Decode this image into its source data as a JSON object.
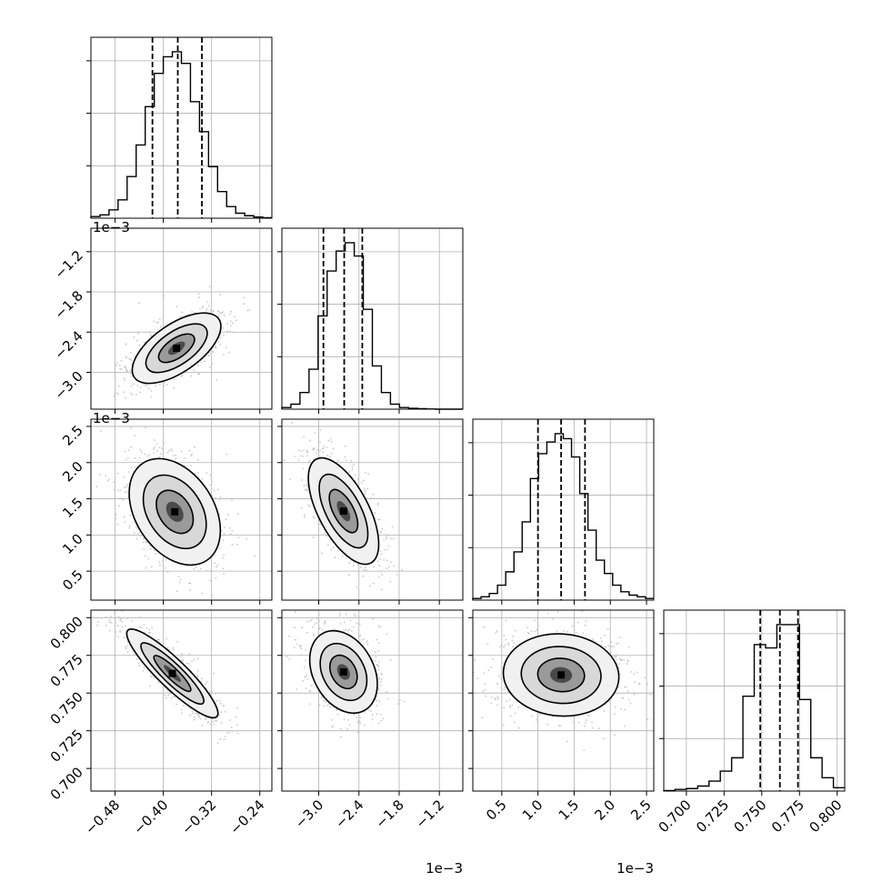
{
  "chart_data": {
    "type": "corner",
    "title": "",
    "grid": true,
    "parameters": [
      {
        "range": [
          -0.52,
          -0.22
        ],
        "ticks": [
          -0.48,
          -0.4,
          -0.32,
          -0.24
        ],
        "tick_labels": [
          "−0.48",
          "−0.40",
          "−0.32",
          "−0.24"
        ],
        "quantiles": [
          -0.418,
          -0.376,
          -0.336
        ],
        "hist": [
          0.01,
          0.02,
          0.05,
          0.11,
          0.25,
          0.44,
          0.67,
          0.87,
          0.97,
          1.0,
          0.93,
          0.7,
          0.52,
          0.31,
          0.16,
          0.07,
          0.03,
          0.015,
          0.007,
          0.003
        ]
      },
      {
        "range": [
          -3.55,
          -0.85
        ],
        "ticks": [
          -3.0,
          -2.4,
          -1.8,
          -1.2
        ],
        "tick_labels": [
          "−3.0",
          "−2.4",
          "−1.8",
          "−1.2"
        ],
        "offset_text": "1e−3",
        "quantiles": [
          -2.93,
          -2.62,
          -2.35
        ],
        "hist": [
          0.01,
          0.03,
          0.1,
          0.24,
          0.56,
          0.83,
          0.95,
          1.0,
          0.92,
          0.6,
          0.26,
          0.1,
          0.03,
          0.01,
          0.005,
          0.003,
          0.001,
          0.0,
          0.0,
          0.0
        ]
      },
      {
        "range": [
          0.1,
          2.6
        ],
        "ticks": [
          0.5,
          1.0,
          1.5,
          2.0,
          2.5
        ],
        "tick_labels": [
          "0.5",
          "1.0",
          "1.5",
          "2.0",
          "2.5"
        ],
        "offset_text": "1e−3",
        "quantiles": [
          1.0,
          1.32,
          1.65
        ],
        "hist": [
          0.01,
          0.02,
          0.04,
          0.09,
          0.17,
          0.29,
          0.47,
          0.73,
          0.88,
          0.95,
          1.0,
          0.97,
          0.86,
          0.64,
          0.42,
          0.24,
          0.16,
          0.09,
          0.05,
          0.03,
          0.02,
          0.01
        ]
      },
      {
        "range": [
          0.685,
          0.805
        ],
        "ticks": [
          0.7,
          0.725,
          0.75,
          0.775,
          0.8
        ],
        "tick_labels": [
          "0.700",
          "0.725",
          "0.750",
          "0.775",
          "0.800"
        ],
        "quantiles": [
          0.749,
          0.762,
          0.774
        ],
        "hist": [
          0.003,
          0.01,
          0.015,
          0.03,
          0.06,
          0.12,
          0.2,
          0.57,
          0.88,
          0.86,
          1.0,
          1.0,
          0.55,
          0.2,
          0.08,
          0.02
        ]
      }
    ],
    "pair_panels": [
      {
        "row": 1,
        "col": 0,
        "mean": [
          -0.378,
          -2.64
        ],
        "sd": [
          0.035,
          0.25
        ],
        "rho": 0.62,
        "contours": [
          0.045,
          0.07,
          0.1
        ]
      },
      {
        "row": 2,
        "col": 0,
        "mean": [
          -0.381,
          1.32
        ],
        "sd": [
          0.036,
          0.35
        ],
        "rho": -0.35,
        "contours": [
          0.045,
          0.07,
          0.1
        ]
      },
      {
        "row": 2,
        "col": 1,
        "mean": [
          -2.63,
          1.33
        ],
        "sd": [
          0.25,
          0.35
        ],
        "rho": -0.62,
        "contours": [
          0.045,
          0.07,
          0.1
        ]
      },
      {
        "row": 3,
        "col": 0,
        "mean": [
          -0.385,
          0.763
        ],
        "sd": [
          0.036,
          0.014
        ],
        "rho": -0.9,
        "contours": [
          0.045,
          0.07,
          0.1
        ]
      },
      {
        "row": 3,
        "col": 1,
        "mean": [
          -2.63,
          0.764
        ],
        "sd": [
          0.24,
          0.013
        ],
        "rho": -0.3,
        "contours": [
          0.045,
          0.07,
          0.1
        ]
      },
      {
        "row": 3,
        "col": 2,
        "mean": [
          1.32,
          0.762
        ],
        "sd": [
          0.38,
          0.013
        ],
        "rho": -0.05,
        "contours": [
          0.045,
          0.07,
          0.1
        ]
      }
    ]
  }
}
